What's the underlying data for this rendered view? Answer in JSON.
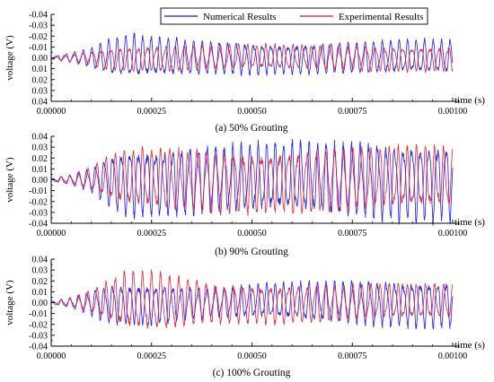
{
  "legend": {
    "items": [
      {
        "label": "Numerical Results",
        "color": "#1a1aff"
      },
      {
        "label": "Experimental Results",
        "color": "#e8182b"
      }
    ]
  },
  "chart_data": [
    {
      "type": "line",
      "title": "(a) 50% Grouting",
      "xlabel": "time (s)",
      "ylabel": "voltage (V)",
      "xlim": [
        0,
        0.001
      ],
      "ylim": [
        -0.04,
        0.04
      ],
      "y_inverted": true,
      "grid": false,
      "x_ticks": [
        "0.00000",
        "0.00025",
        "0.00050",
        "0.00075",
        "0.00100"
      ],
      "y_ticks": [
        "-0.04",
        "-0.03",
        "-0.02",
        "-0.01",
        "0.00",
        "0.01",
        "0.02",
        "0.03",
        "0.04"
      ],
      "series": [
        {
          "name": "Numerical Results",
          "color": "#1a1aff",
          "envelope_t": [
            0,
            5e-05,
            0.0001,
            0.00015,
            0.0002,
            0.00025,
            0.0004,
            0.0006,
            0.0008,
            0.001
          ],
          "envelope_amp": [
            0.001,
            0.004,
            0.008,
            0.015,
            0.018,
            0.016,
            0.013,
            0.012,
            0.013,
            0.014
          ]
        },
        {
          "name": "Experimental Results",
          "color": "#e8182b",
          "envelope_t": [
            0,
            5e-05,
            0.0001,
            0.00015,
            0.0002,
            0.00025,
            0.0004,
            0.0006,
            0.0008,
            0.001
          ],
          "envelope_amp": [
            0.001,
            0.003,
            0.006,
            0.009,
            0.01,
            0.01,
            0.01,
            0.01,
            0.01,
            0.01
          ]
        }
      ]
    },
    {
      "type": "line",
      "title": "(b) 90% Grouting",
      "xlabel": "time (s)",
      "ylabel": "voltage (V)",
      "xlim": [
        0,
        0.001
      ],
      "ylim": [
        -0.04,
        0.04
      ],
      "y_inverted": false,
      "grid": false,
      "x_ticks": [
        "0.00000",
        "0.00025",
        "0.00050",
        "0.00075",
        "0.00100"
      ],
      "y_ticks": [
        "0.04",
        "0.03",
        "0.02",
        "0.01",
        "0.00",
        "-0.01",
        "-0.02",
        "-0.03",
        "-0.04"
      ],
      "series": [
        {
          "name": "Numerical Results",
          "color": "#1a1aff",
          "envelope_t": [
            0,
            5e-05,
            0.0001,
            0.00015,
            0.0002,
            0.00025,
            0.0004,
            0.0006,
            0.0008,
            0.001
          ],
          "envelope_amp": [
            0.001,
            0.004,
            0.01,
            0.022,
            0.027,
            0.027,
            0.027,
            0.028,
            0.03,
            0.032
          ]
        },
        {
          "name": "Experimental Results",
          "color": "#e8182b",
          "envelope_t": [
            0,
            5e-05,
            0.0001,
            0.00015,
            0.0002,
            0.00025,
            0.0004,
            0.0006,
            0.0008,
            0.001
          ],
          "envelope_amp": [
            0.001,
            0.004,
            0.009,
            0.019,
            0.023,
            0.024,
            0.025,
            0.025,
            0.025,
            0.025
          ]
        }
      ]
    },
    {
      "type": "line",
      "title": "(c) 100% Grouting",
      "xlabel": "time (s)",
      "ylabel": "voltage (V)",
      "xlim": [
        0,
        0.001
      ],
      "ylim": [
        -0.04,
        0.04
      ],
      "y_inverted": false,
      "grid": false,
      "x_ticks": [
        "0.00000",
        "0.00025",
        "0.00050",
        "0.00075",
        "0.00100"
      ],
      "y_ticks": [
        "0.04",
        "0.03",
        "0.02",
        "0.01",
        "0.00",
        "-0.01",
        "-0.02",
        "-0.03",
        "-0.04"
      ],
      "series": [
        {
          "name": "Numerical Results",
          "color": "#1a1aff",
          "envelope_t": [
            0,
            5e-05,
            0.0001,
            0.00015,
            0.0002,
            0.00025,
            0.0004,
            0.0006,
            0.0008,
            0.001
          ],
          "envelope_amp": [
            0.001,
            0.004,
            0.01,
            0.016,
            0.016,
            0.016,
            0.012,
            0.015,
            0.018,
            0.019
          ]
        },
        {
          "name": "Experimental Results",
          "color": "#e8182b",
          "envelope_t": [
            0,
            5e-05,
            0.0001,
            0.00015,
            0.0002,
            0.00025,
            0.0004,
            0.0006,
            0.0008,
            0.001
          ],
          "envelope_amp": [
            0.001,
            0.004,
            0.009,
            0.018,
            0.024,
            0.024,
            0.016,
            0.015,
            0.014,
            0.014
          ]
        }
      ]
    }
  ]
}
